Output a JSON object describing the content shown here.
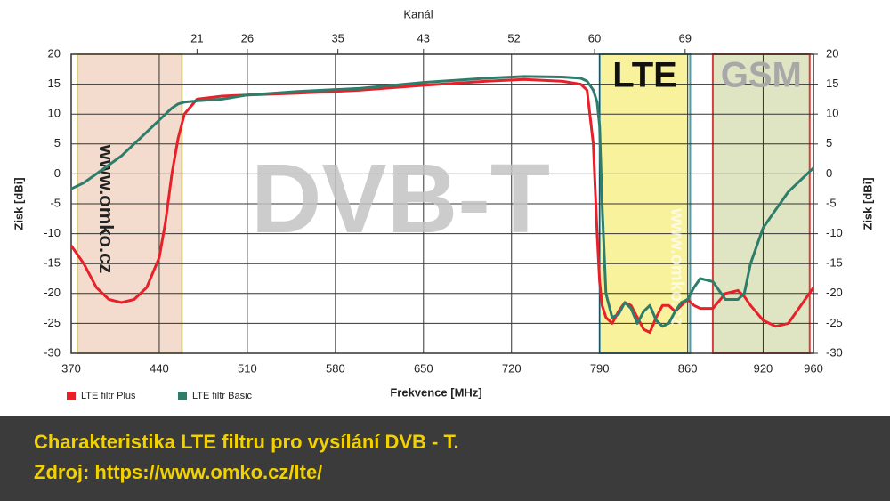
{
  "chart_data": {
    "type": "line",
    "top_axis_title": "Kanál",
    "xlabel": "Frekvence [MHz]",
    "ylabel": "Zisk [dBi]",
    "y2label": "Zisk [dBi]",
    "x": [
      370,
      380,
      390,
      400,
      410,
      420,
      430,
      440,
      445,
      450,
      455,
      460,
      470,
      490,
      510,
      550,
      600,
      650,
      700,
      730,
      760,
      775,
      780,
      785,
      788,
      790,
      792,
      795,
      800,
      805,
      810,
      815,
      820,
      825,
      830,
      835,
      840,
      845,
      850,
      855,
      860,
      865,
      870,
      880,
      890,
      900,
      905,
      910,
      920,
      930,
      940,
      950,
      960
    ],
    "series": [
      {
        "name": "LTE filtr Plus",
        "color": "#e8202a",
        "values": [
          -12,
          -15,
          -19,
          -21,
          -21.5,
          -21,
          -19,
          -14,
          -8,
          0,
          6,
          10,
          12.5,
          13,
          13.2,
          13.5,
          14,
          14.8,
          15.5,
          15.8,
          15.5,
          15,
          14,
          5,
          -10,
          -18,
          -22,
          -24,
          -25,
          -23,
          -21.5,
          -22,
          -24,
          -26,
          -26.5,
          -24,
          -22,
          -22,
          -23,
          -22,
          -21,
          -22,
          -22.5,
          -22.5,
          -20,
          -19.5,
          -20.5,
          -22,
          -24.5,
          -25.5,
          -25,
          -22,
          -19
        ]
      },
      {
        "name": "LTE filtr Basic",
        "color": "#2e7d6b",
        "values": [
          -2.5,
          -1.5,
          0,
          1.5,
          3,
          5,
          7,
          9,
          10,
          11,
          11.7,
          12,
          12.2,
          12.5,
          13.2,
          13.8,
          14.3,
          15.3,
          16,
          16.3,
          16.2,
          16,
          15.5,
          14,
          12,
          8,
          -5,
          -20,
          -24,
          -23.5,
          -21.5,
          -22.5,
          -25,
          -23,
          -22,
          -24.5,
          -25.5,
          -25,
          -23,
          -21.5,
          -21,
          -19,
          -17.5,
          -18,
          -21,
          -21,
          -20,
          -15,
          -9,
          -6,
          -3,
          -1,
          1
        ]
      }
    ],
    "xlim": [
      370,
      960
    ],
    "xticks": [
      370,
      440,
      510,
      580,
      650,
      720,
      790,
      860,
      920,
      960
    ],
    "top_ticks": [
      {
        "value": 470,
        "label": "21"
      },
      {
        "value": 510,
        "label": "26"
      },
      {
        "value": 582,
        "label": "35"
      },
      {
        "value": 650,
        "label": "43"
      },
      {
        "value": 722,
        "label": "52"
      },
      {
        "value": 786,
        "label": "60"
      },
      {
        "value": 858,
        "label": "69"
      }
    ],
    "ylim": [
      -30,
      20
    ],
    "yticks": [
      -30,
      -25,
      -20,
      -15,
      -10,
      -5,
      0,
      5,
      10,
      15,
      20
    ],
    "y2lim": [
      -30,
      20
    ],
    "y2ticks": [
      -30,
      -25,
      -20,
      -15,
      -10,
      -5,
      0,
      5,
      10,
      15,
      20
    ],
    "grid": true,
    "bands": [
      {
        "from": 375,
        "to": 458,
        "fill": "#f3dccd",
        "stroke": "#d6cf7a"
      },
      {
        "label": "LTE",
        "from": 790,
        "to": 862,
        "fill": "#f8f29c",
        "stroke": "#3aa0c8",
        "label_color": "#111111"
      },
      {
        "label": "GSM",
        "from": 880,
        "to": 957,
        "fill": "#dfe5c2",
        "stroke": "#d04040",
        "label_color": "#a8a8a8"
      }
    ],
    "watermarks": {
      "main": "DVB-T",
      "site": "www.omko.cz",
      "site_faint": "www.omko.cz"
    }
  },
  "caption": {
    "lines": [
      "Charakteristika LTE filtru pro vysílání DVB - T.",
      "Zdroj: https://www.omko.cz/lte/"
    ]
  }
}
